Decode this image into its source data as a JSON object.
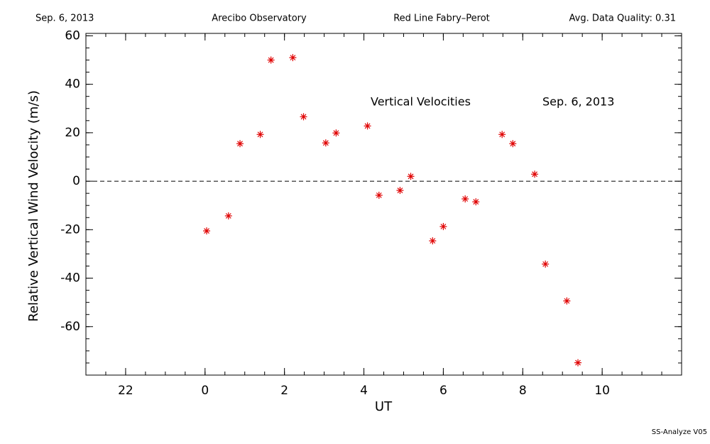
{
  "chart_data": {
    "type": "scatter",
    "header": [
      "Sep. 6, 2013",
      "Arecibo Observatory",
      "Red Line Fabry–Perot",
      "Avg. Data Quality: 0.31"
    ],
    "annotations": [
      "Vertical Velocities",
      "Sep. 6, 2013"
    ],
    "x_label": "UT",
    "y_label": "Relative Vertical Wind Velocity (m/s)",
    "footer": "SS-Analyze V05",
    "xlim": [
      -3,
      12
    ],
    "xticks": [
      {
        "value": -2,
        "label": "22"
      },
      0,
      2,
      4,
      6,
      8,
      10
    ],
    "ylim": [
      -80,
      61
    ],
    "yticks": [
      -60,
      -40,
      -20,
      0,
      20,
      40,
      60
    ],
    "reference_line": 0,
    "series": [
      {
        "color": "#e00000",
        "x": [
          0.04,
          0.59,
          0.88,
          1.39,
          1.66,
          2.21,
          2.48,
          3.04,
          3.3,
          4.09,
          4.38,
          4.91,
          5.18,
          5.73,
          6.0,
          6.55,
          6.82,
          7.48,
          7.75,
          8.3,
          8.57,
          9.11,
          9.39
        ],
        "values": [
          -20.5,
          -14.3,
          15.5,
          19.3,
          50,
          51,
          26.6,
          15.8,
          19.9,
          22.8,
          -5.8,
          -3.8,
          2,
          -24.6,
          -18.7,
          -7.3,
          -8.5,
          19.3,
          15.5,
          2.9,
          -34.2,
          -49.4,
          -74.9
        ]
      }
    ]
  }
}
